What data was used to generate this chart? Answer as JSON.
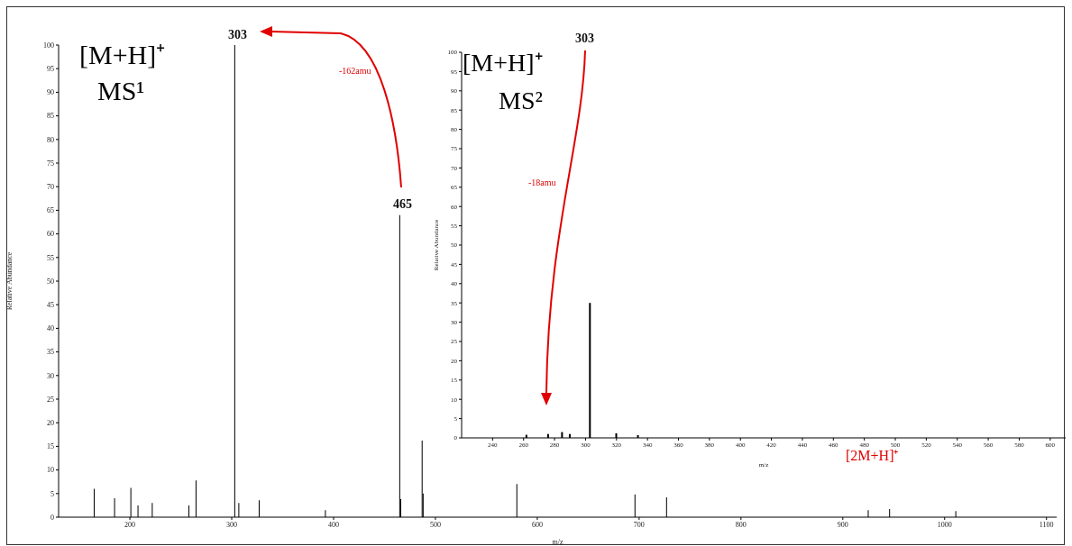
{
  "chart_data": [
    {
      "type": "bar",
      "xlabel": "m/z",
      "ylabel": "Relative Abundance",
      "x": [
        165,
        185,
        201,
        208,
        222,
        258,
        265,
        303,
        307,
        327,
        392,
        465,
        466,
        487,
        488,
        580,
        696,
        727,
        925,
        946,
        1011
      ],
      "series": [
        {
          "color": "#000000",
          "values": [
            6,
            4,
            6.2,
            2.5,
            3,
            2.5,
            7.8,
            100,
            3,
            3.6,
            1.5,
            64,
            3.8,
            16.2,
            5,
            7,
            4.8,
            4.2,
            1.5,
            1.7,
            1.3
          ]
        }
      ],
      "xlim": [
        130,
        1110
      ],
      "xticks": [
        200,
        300,
        400,
        500,
        600,
        700,
        800,
        900,
        1000,
        1100
      ],
      "ylim": [
        0,
        100
      ],
      "yticks": [
        0,
        5,
        10,
        15,
        20,
        25,
        30,
        35,
        40,
        45,
        50,
        55,
        60,
        65,
        70,
        75,
        80,
        85,
        90,
        95,
        100
      ],
      "grid": false,
      "legend": false,
      "annotations": [
        "[M+H]⁺",
        "MS¹",
        "-162amu",
        "[2M+H]⁺",
        "303",
        "465"
      ]
    },
    {
      "type": "bar",
      "xlabel": "m/z",
      "ylabel": "Relative Abundance",
      "x": [
        262,
        276,
        285,
        290,
        303,
        320,
        334
      ],
      "series": [
        {
          "color": "#000000",
          "values": [
            0.8,
            1,
            1.5,
            1,
            35,
            1.2,
            0.7
          ]
        }
      ],
      "xlim": [
        220,
        610
      ],
      "xticks": [
        240,
        260,
        280,
        300,
        320,
        340,
        360,
        380,
        400,
        420,
        440,
        460,
        480,
        500,
        520,
        540,
        560,
        580,
        600
      ],
      "ylim": [
        0,
        100
      ],
      "yticks": [
        0,
        5,
        10,
        15,
        20,
        25,
        30,
        35,
        40,
        45,
        50,
        55,
        60,
        65,
        70,
        75,
        80,
        85,
        90,
        95,
        100
      ],
      "grid": false,
      "legend": false,
      "annotations": [
        "[M+H]⁺",
        "MS²",
        "-18amu",
        "303"
      ]
    }
  ]
}
